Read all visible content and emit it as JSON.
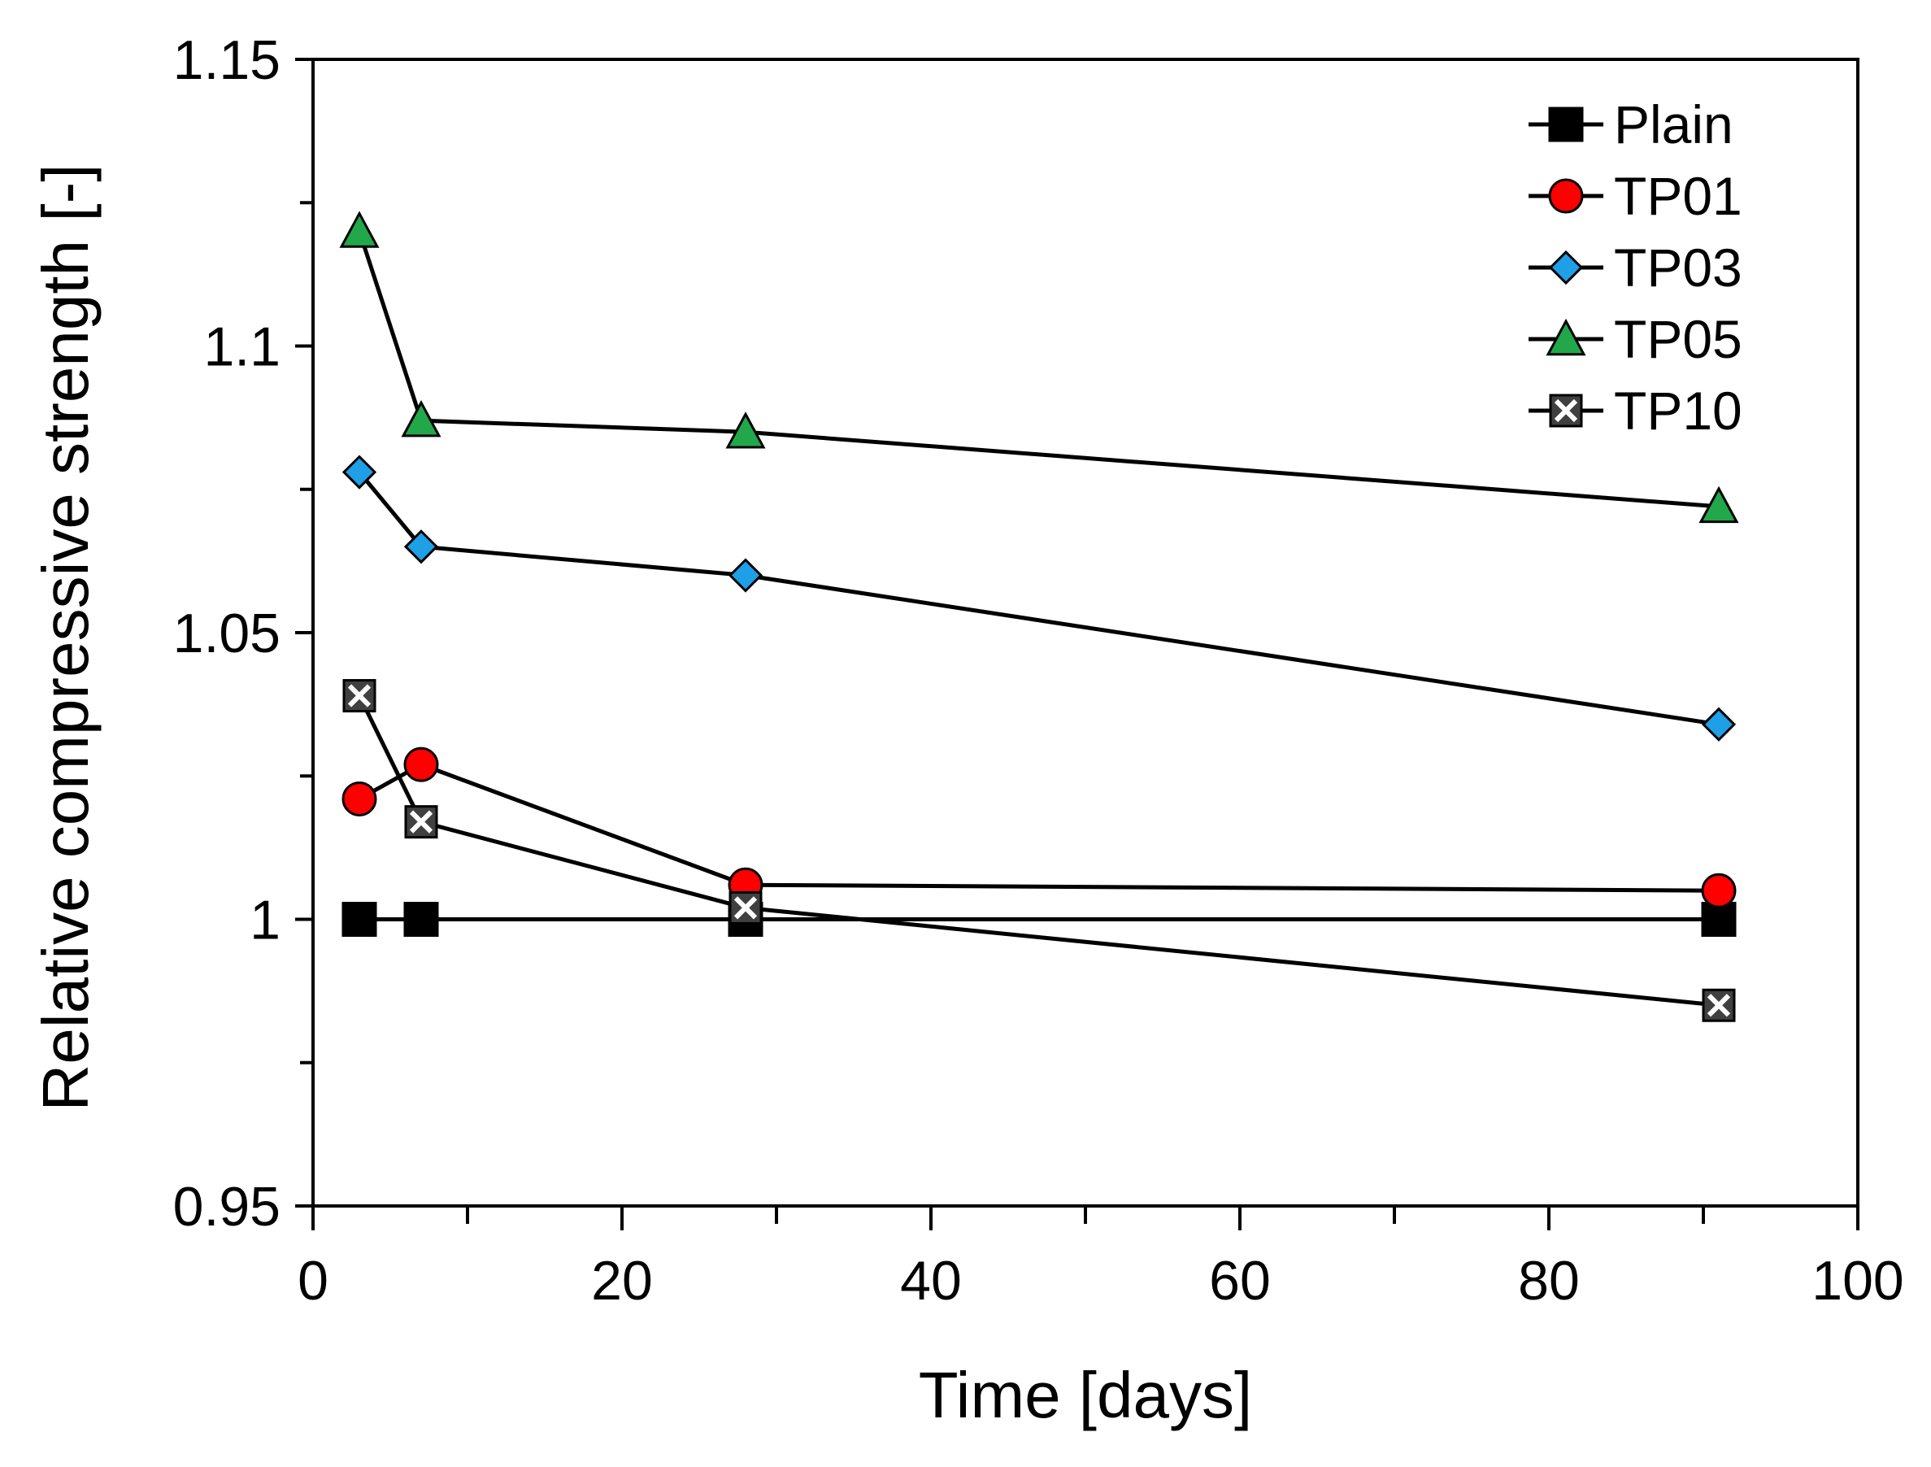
{
  "chart_data": {
    "type": "line",
    "title": "",
    "xlabel": "Time [days]",
    "ylabel": "Relative compressive strength [-]",
    "xlim": [
      0,
      100
    ],
    "ylim": [
      0.95,
      1.15
    ],
    "x_ticks": [
      0,
      20,
      40,
      60,
      80,
      100
    ],
    "x_tick_labels": [
      "0",
      "20",
      "40",
      "60",
      "80",
      "100"
    ],
    "x_minor_ticks": [
      10,
      30,
      50,
      70,
      90
    ],
    "y_ticks": [
      0.95,
      1.0,
      1.05,
      1.1,
      1.15
    ],
    "y_tick_labels": [
      "0.95",
      "1",
      "1.05",
      "1.1",
      "1.15"
    ],
    "y_minor_ticks": [
      0.975,
      1.025,
      1.075,
      1.125
    ],
    "grid": false,
    "legend_position": "top-right",
    "x": [
      3,
      7,
      28,
      91
    ],
    "series": [
      {
        "name": "Plain",
        "marker": "square",
        "color": "#000000",
        "values": [
          1.0,
          1.0,
          1.0,
          1.0
        ]
      },
      {
        "name": "TP01",
        "marker": "circle",
        "color": "#ff0000",
        "values": [
          1.021,
          1.027,
          1.006,
          1.005
        ]
      },
      {
        "name": "TP03",
        "marker": "diamond",
        "color": "#1e9fe6",
        "values": [
          1.078,
          1.065,
          1.06,
          1.034
        ]
      },
      {
        "name": "TP05",
        "marker": "triangle",
        "color": "#22a84a",
        "values": [
          1.12,
          1.087,
          1.085,
          1.072
        ]
      },
      {
        "name": "TP10",
        "marker": "x-square",
        "color": "#808080",
        "values": [
          1.039,
          1.017,
          1.002,
          0.985
        ]
      }
    ]
  }
}
